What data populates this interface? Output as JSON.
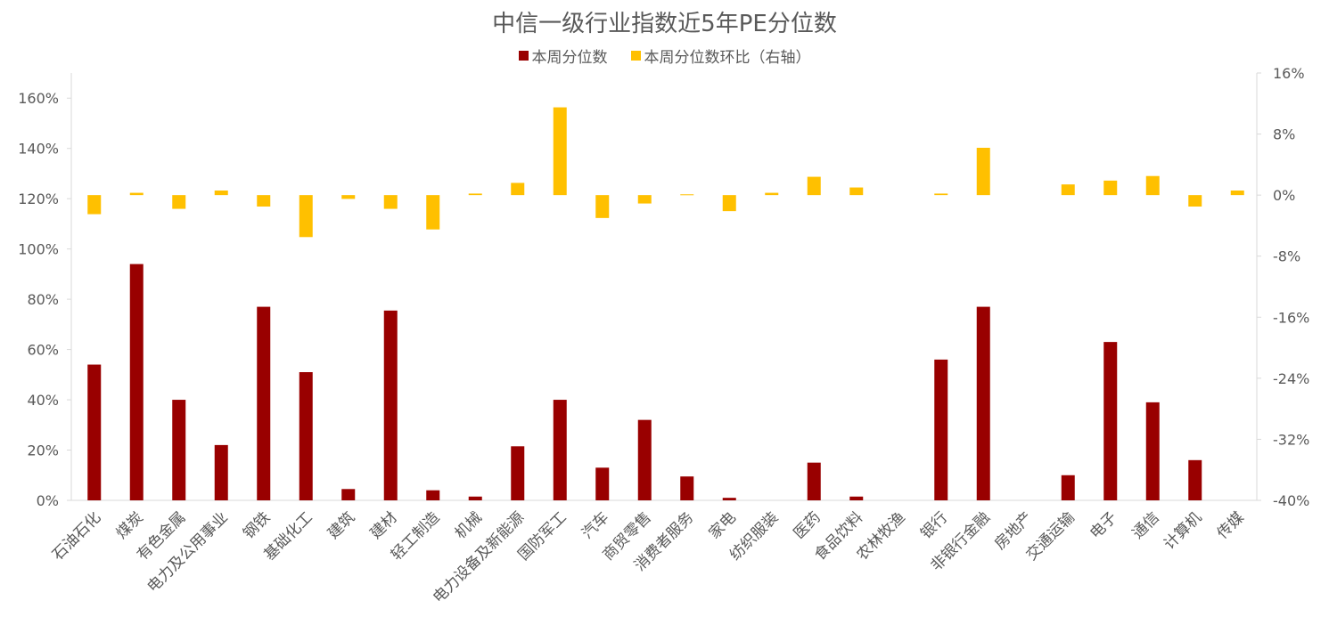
{
  "chart_data": {
    "type": "bar",
    "title": "中信一级行业指数近5年PE分位数",
    "legend_position": "top",
    "grid": false,
    "categories": [
      "石油石化",
      "煤炭",
      "有色金属",
      "电力及公用事业",
      "钢铁",
      "基础化工",
      "建筑",
      "建材",
      "轻工制造",
      "机械",
      "电力设备及新能源",
      "国防军工",
      "汽车",
      "商贸零售",
      "消费者服务",
      "家电",
      "纺织服装",
      "医药",
      "食品饮料",
      "农林牧渔",
      "银行",
      "非银行金融",
      "房地产",
      "交通运输",
      "电子",
      "通信",
      "计算机",
      "传媒"
    ],
    "series": [
      {
        "name": "本周分位数",
        "axis": "left",
        "color": "#990000",
        "values": [
          54,
          94,
          40,
          22,
          77,
          51,
          4.5,
          75.5,
          4,
          1.5,
          21.5,
          40,
          13,
          32,
          9.5,
          1,
          0,
          15,
          1.5,
          0,
          56,
          77,
          0,
          10,
          63,
          39,
          16,
          0
        ]
      },
      {
        "name": "本周分位数环比（右轴）",
        "axis": "right",
        "color": "#FFC000",
        "values": [
          -2.5,
          0.3,
          -1.8,
          0.6,
          -1.5,
          -5.5,
          -0.5,
          -1.8,
          -4.5,
          0.2,
          1.6,
          11.5,
          -3.0,
          -1.1,
          0.1,
          -2.1,
          0.3,
          2.4,
          1.0,
          0,
          0.2,
          6.2,
          0,
          1.4,
          1.9,
          2.5,
          -1.5,
          0.6
        ]
      }
    ],
    "ylim": [
      0,
      170
    ],
    "yticks": [
      0,
      20,
      40,
      60,
      80,
      100,
      120,
      140,
      160
    ],
    "ytick_labels": [
      "0%",
      "20%",
      "40%",
      "60%",
      "80%",
      "100%",
      "120%",
      "140%",
      "160%"
    ],
    "y2lim": [
      -40,
      16
    ],
    "y2ticks": [
      -40,
      -32,
      -24,
      -16,
      -8,
      0,
      8,
      16
    ],
    "y2tick_labels": [
      "-40%",
      "-32%",
      "-24%",
      "-16%",
      "-8%",
      "0%",
      "8%",
      "16%"
    ],
    "xlabel": "",
    "ylabel": ""
  }
}
